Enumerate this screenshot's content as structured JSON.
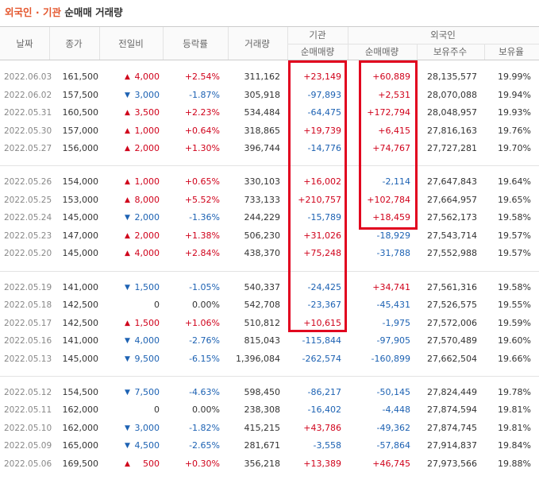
{
  "title": {
    "highlight": "외국인 · 기관",
    "rest": "순매매 거래량"
  },
  "header": {
    "columns": [
      "날짜",
      "종가",
      "전일비",
      "등락률",
      "거래량"
    ],
    "inst": {
      "label": "기관",
      "sub": "순매매량"
    },
    "foreign": {
      "label": "외국인",
      "subs": [
        "순매매량",
        "보유주수",
        "보유율"
      ]
    }
  },
  "table": {
    "groups": [
      {
        "rows": [
          [
            "2022.06.03",
            "161,500",
            "4,000",
            "+2.54%",
            "311,162",
            "+23,149",
            "+60,889",
            "28,135,577",
            "19.99%"
          ],
          [
            "2022.06.02",
            "157,500",
            "3,000",
            "-1.87%",
            "305,918",
            "-97,893",
            "+2,531",
            "28,070,088",
            "19.94%"
          ],
          [
            "2022.05.31",
            "160,500",
            "3,500",
            "+2.23%",
            "534,484",
            "-64,475",
            "+172,794",
            "28,048,957",
            "19.93%"
          ],
          [
            "2022.05.30",
            "157,000",
            "1,000",
            "+0.64%",
            "318,865",
            "+19,739",
            "+6,415",
            "27,816,163",
            "19.76%"
          ],
          [
            "2022.05.27",
            "156,000",
            "2,000",
            "+1.30%",
            "396,744",
            "-14,776",
            "+74,767",
            "27,727,281",
            "19.70%"
          ]
        ]
      },
      {
        "rows": [
          [
            "2022.05.26",
            "154,000",
            "1,000",
            "+0.65%",
            "330,103",
            "+16,002",
            "-2,114",
            "27,647,843",
            "19.64%"
          ],
          [
            "2022.05.25",
            "153,000",
            "8,000",
            "+5.52%",
            "733,133",
            "+210,757",
            "+102,784",
            "27,664,957",
            "19.65%"
          ],
          [
            "2022.05.24",
            "145,000",
            "2,000",
            "-1.36%",
            "244,229",
            "-15,789",
            "+18,459",
            "27,562,173",
            "19.58%"
          ],
          [
            "2022.05.23",
            "147,000",
            "2,000",
            "+1.38%",
            "506,230",
            "+31,026",
            "-18,929",
            "27,543,714",
            "19.57%"
          ],
          [
            "2022.05.20",
            "145,000",
            "4,000",
            "+2.84%",
            "438,370",
            "+75,248",
            "-31,788",
            "27,552,988",
            "19.57%"
          ]
        ]
      },
      {
        "rows": [
          [
            "2022.05.19",
            "141,000",
            "1,500",
            "-1.05%",
            "540,337",
            "-24,425",
            "+34,741",
            "27,561,316",
            "19.58%"
          ],
          [
            "2022.05.18",
            "142,500",
            "0",
            "0.00%",
            "542,708",
            "-23,367",
            "-45,431",
            "27,526,575",
            "19.55%"
          ],
          [
            "2022.05.17",
            "142,500",
            "1,500",
            "+1.06%",
            "510,812",
            "+10,615",
            "-1,975",
            "27,572,006",
            "19.59%"
          ],
          [
            "2022.05.16",
            "141,000",
            "4,000",
            "-2.76%",
            "815,043",
            "-115,844",
            "-97,905",
            "27,570,489",
            "19.60%"
          ],
          [
            "2022.05.13",
            "145,000",
            "9,500",
            "-6.15%",
            "1,396,084",
            "-262,574",
            "-160,899",
            "27,662,504",
            "19.66%"
          ]
        ]
      },
      {
        "rows": [
          [
            "2022.05.12",
            "154,500",
            "7,500",
            "-4.63%",
            "598,450",
            "-86,217",
            "-50,145",
            "27,824,449",
            "19.78%"
          ],
          [
            "2022.05.11",
            "162,000",
            "0",
            "0.00%",
            "238,308",
            "-16,402",
            "-4,448",
            "27,874,594",
            "19.81%"
          ],
          [
            "2022.05.10",
            "162,000",
            "3,000",
            "-1.82%",
            "415,215",
            "+43,786",
            "-49,362",
            "27,874,745",
            "19.81%"
          ],
          [
            "2022.05.09",
            "165,000",
            "4,500",
            "-2.65%",
            "281,671",
            "-3,558",
            "-57,864",
            "27,914,837",
            "19.84%"
          ],
          [
            "2022.05.06",
            "169,500",
            "500",
            "+0.30%",
            "356,218",
            "+13,389",
            "+46,745",
            "27,973,566",
            "19.88%"
          ]
        ]
      }
    ]
  }
}
